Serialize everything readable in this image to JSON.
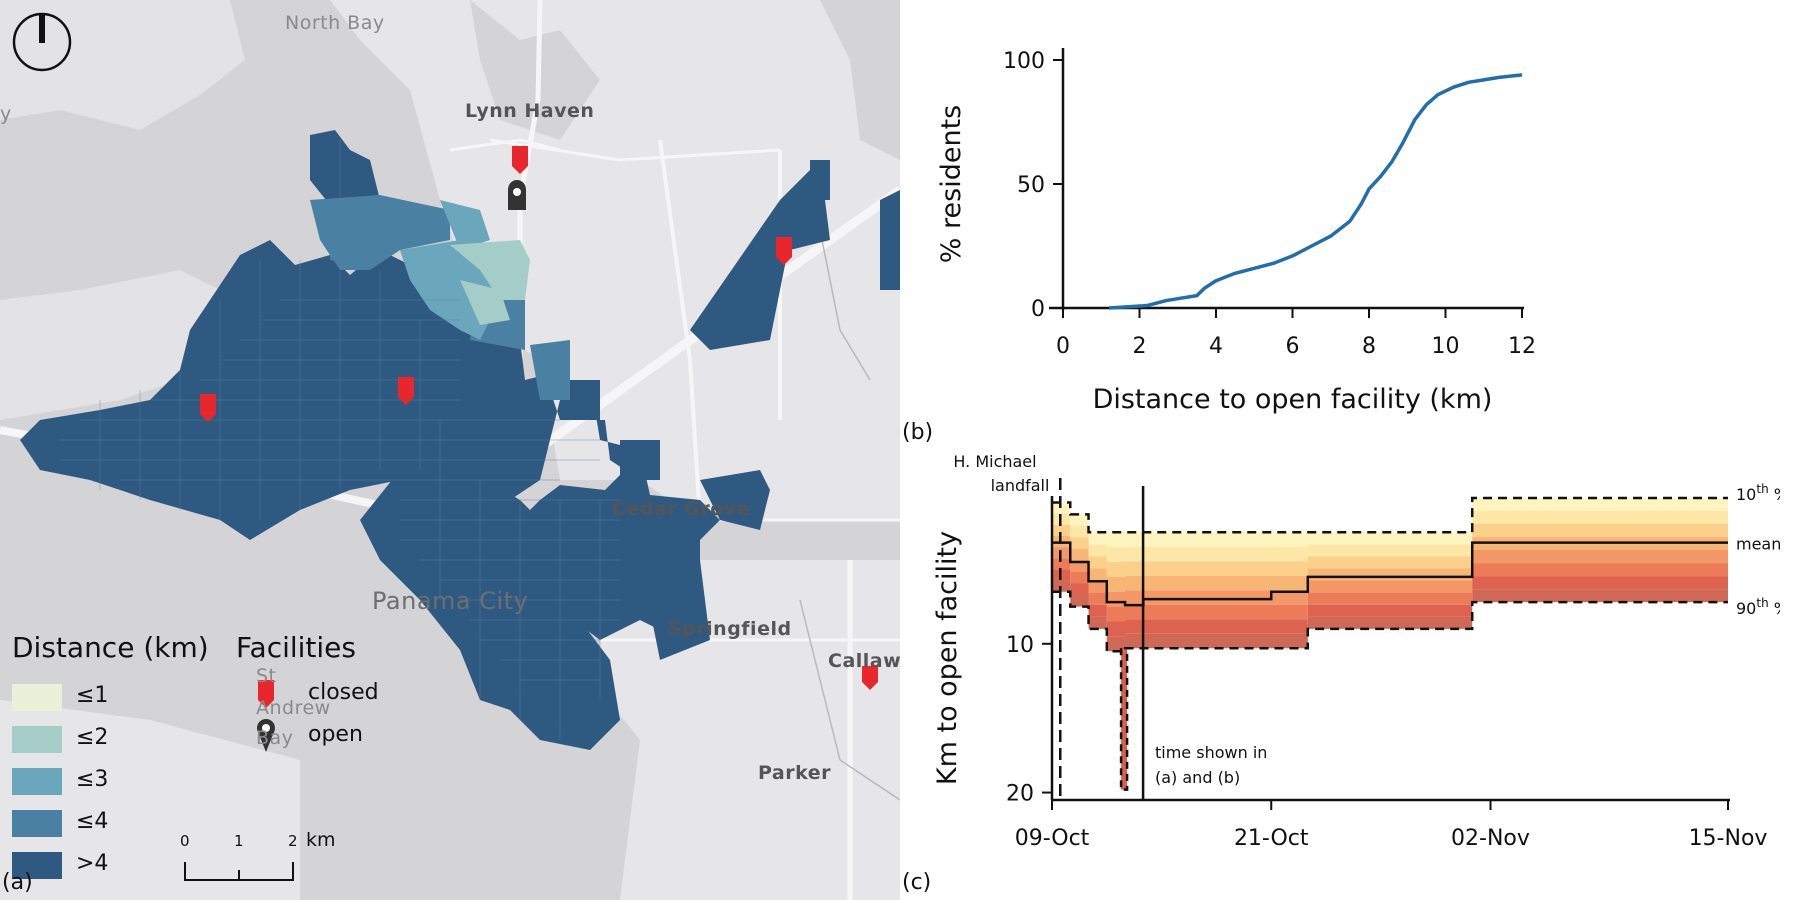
{
  "map": {
    "places": {
      "north_bay": "North Bay",
      "lynn_haven": "Lynn Haven",
      "cedar_grove": "Cedar Grove",
      "panama_city": "Panama City",
      "springfield": "Springfield",
      "callaway": "Callaw",
      "st_andrew_1": "St",
      "st_andrew_2": "Andrew",
      "st_andrew_3": "Bay",
      "parker": "Parker",
      "left_edge": "y"
    },
    "legend": {
      "distance_title": "Distance (km)",
      "facilities_title": "Facilities",
      "bins": [
        {
          "label": "≤1",
          "color": "#e9f2d8"
        },
        {
          "label": "≤2",
          "color": "#a5cdc8"
        },
        {
          "label": "≤3",
          "color": "#6ba7bc"
        },
        {
          "label": "≤4",
          "color": "#4a80a2"
        },
        {
          "label": ">4",
          "color": "#2e5a82"
        }
      ],
      "closed_label": "closed",
      "open_label": "open",
      "closed_color": "#e8262c",
      "open_color": "#333333"
    },
    "scale": {
      "t0": "0",
      "t1": "1",
      "t2": "2",
      "unit": "km"
    },
    "panel_label": "(a)"
  },
  "panel_b_label": "(b)",
  "panel_c_label": "(c)",
  "chart_data": [
    {
      "type": "line",
      "xlabel": "Distance to open facility (km)",
      "ylabel": "% residents",
      "xlim": [
        0,
        12
      ],
      "ylim": [
        0,
        100
      ],
      "xticks": [
        0,
        2,
        4,
        6,
        8,
        10,
        12
      ],
      "yticks": [
        0,
        50,
        100
      ],
      "color": "#1f6fae",
      "series": [
        {
          "x": [
            1.2,
            2.2,
            2.7,
            3.1,
            3.5,
            3.7,
            4.0,
            4.5,
            5.0,
            5.5,
            6.0,
            6.5,
            7.0,
            7.5,
            7.8,
            8.0,
            8.3,
            8.6,
            8.9,
            9.2,
            9.5,
            9.8,
            10.2,
            10.6,
            11.0,
            11.4,
            12.0
          ],
          "y": [
            0,
            1,
            3,
            4,
            5,
            8,
            11,
            14,
            16,
            18,
            21,
            25,
            29,
            35,
            42,
            48,
            53,
            59,
            67,
            76,
            82,
            86,
            89,
            91,
            92,
            93,
            94
          ]
        }
      ]
    },
    {
      "type": "area",
      "ylabel": "Km to open facility",
      "xtick_labels": [
        "09-Oct",
        "21-Oct",
        "02-Nov",
        "15-Nov"
      ],
      "x_dates": [
        "2018-10-09",
        "2018-10-10",
        "2018-10-11",
        "2018-10-12",
        "2018-10-13",
        "2018-10-14",
        "2018-10-21",
        "2018-10-23",
        "2018-11-01",
        "2018-11-15"
      ],
      "yticks": [
        10,
        20
      ],
      "ylim_inverted": [
        0,
        20.5
      ],
      "mean": [
        3.2,
        4.5,
        5.8,
        7.2,
        7.4,
        7.0,
        6.5,
        5.5,
        3.2,
        3.2
      ],
      "p10": [
        0.5,
        1.3,
        2.5,
        2.5,
        2.5,
        2.5,
        2.5,
        2.5,
        0.2,
        0.2
      ],
      "p90": [
        6.5,
        7.5,
        9.0,
        10.5,
        10.3,
        10.3,
        10.3,
        9.0,
        7.2,
        7.2
      ],
      "spike": {
        "date": "2018-10-13",
        "value": 19.8
      },
      "band_colors": [
        "#fff3c0",
        "#fde7a6",
        "#fbd08a",
        "#f8b676",
        "#f39866",
        "#ec7c58",
        "#de6250",
        "#cf6955"
      ],
      "mean_label": "mean",
      "p10_label": "10",
      "p10_sup": "th",
      "p10_pct": " %",
      "p90_label": "90",
      "p90_sup": "th",
      "p90_pct": " %",
      "landfall_annotation_1": "H. Michael",
      "landfall_annotation_2": "landfall",
      "landfall_date": "2018-10-10",
      "time_shown_annotation_1": "time shown in",
      "time_shown_annotation_2": "(a) and (b)",
      "time_shown_date": "2018-10-13"
    }
  ]
}
